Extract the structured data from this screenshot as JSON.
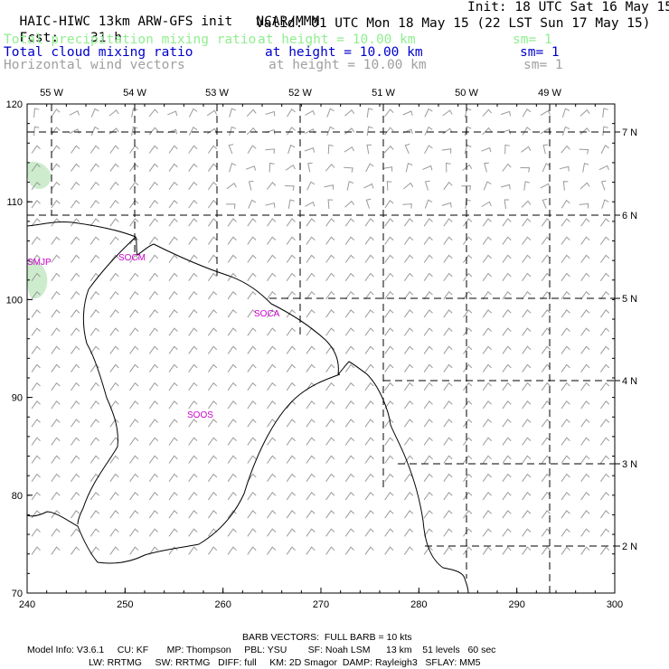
{
  "header": {
    "title": "HAIC-HIWC 13km ARW-GFS init",
    "org": "NCAR/MMM",
    "init": "Init: 18 UTC Sat 16 May 15",
    "fcst_label": "Fcst:",
    "fcst_value": "31 h",
    "valid": "Valid: 01 UTC Mon 18 May 15 (22 LST Sun 17 May 15)"
  },
  "fields": [
    {
      "name": "Total precipitation mixing ratio",
      "level": "at height = 10.00 km",
      "sm": "sm= 1",
      "color": "#90ee90"
    },
    {
      "name": "Total cloud mixing ratio",
      "level": "at height = 10.00 km",
      "sm": "sm= 1",
      "color": "#0000cd"
    },
    {
      "name": "Horizontal wind vectors",
      "level": "at height = 10.00 km",
      "sm": "sm= 1",
      "color": "#a0a0a0"
    }
  ],
  "map": {
    "x_ticks": [
      "240",
      "250",
      "260",
      "270",
      "280",
      "290",
      "300"
    ],
    "y_ticks": [
      "70",
      "80",
      "90",
      "100",
      "110",
      "120"
    ],
    "lon_labels": [
      "55 W",
      "54 W",
      "53 W",
      "52 W",
      "51 W",
      "50 W",
      "49 W"
    ],
    "lat_labels": [
      "7 N",
      "6 N",
      "5 N",
      "4 N",
      "3 N",
      "2 N"
    ],
    "stations": [
      "SMJP",
      "SOCM",
      "SOCA",
      "SOOS"
    ],
    "precip_color": "#cdeccd",
    "station_color": "#cc00cc"
  },
  "footer": {
    "barb": "BARB VECTORS:  FULL BARB = 10 kts",
    "line1": "Model Info: V3.6.1     CU: KF       MP: Thompson     PBL: YSU        SF: Noah LSM      13 km    51 levels   60 sec",
    "line2": "LW: RRTMG     SW: RRTMG   DIFF: full     KM: 2D Smagor  DAMP: Rayleigh3   SFLAY: MM5"
  }
}
